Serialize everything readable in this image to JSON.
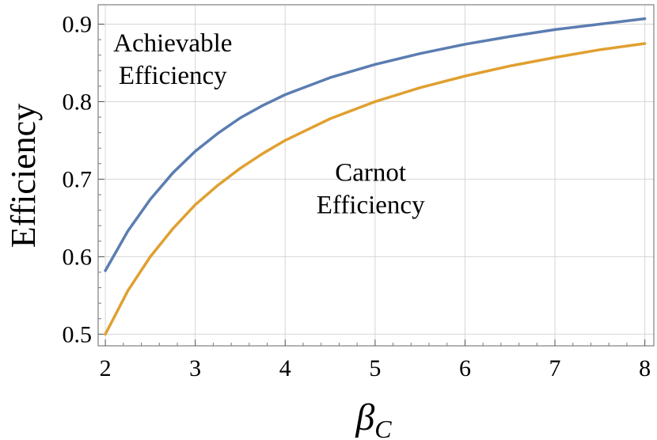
{
  "chart_data": {
    "type": "line",
    "xlabel_main": "β",
    "xlabel_sub": "C",
    "ylabel": "Efficiency",
    "xlim": [
      1.92,
      8.1
    ],
    "ylim": [
      0.485,
      0.925
    ],
    "x_ticks": [
      2,
      3,
      4,
      5,
      6,
      7,
      8
    ],
    "y_ticks": [
      0.5,
      0.6,
      0.7,
      0.8,
      0.9
    ],
    "x_tick_labels": [
      "2",
      "3",
      "4",
      "5",
      "6",
      "7",
      "8"
    ],
    "y_tick_labels": [
      "0.5",
      "0.6",
      "0.7",
      "0.8",
      "0.9"
    ],
    "grid": true,
    "series": [
      {
        "name": "Achievable Efficiency",
        "color": "#5B7DB1",
        "x": [
          2,
          2.25,
          2.5,
          2.75,
          3,
          3.25,
          3.5,
          3.75,
          4,
          4.5,
          5,
          5.5,
          6,
          6.5,
          7,
          7.5,
          8
        ],
        "values": [
          0.582,
          0.633,
          0.674,
          0.708,
          0.736,
          0.759,
          0.779,
          0.795,
          0.809,
          0.831,
          0.848,
          0.862,
          0.874,
          0.884,
          0.893,
          0.9,
          0.907
        ]
      },
      {
        "name": "Carnot Efficiency",
        "color": "#E0A030",
        "x": [
          2,
          2.25,
          2.5,
          2.75,
          3,
          3.25,
          3.5,
          3.75,
          4,
          4.5,
          5,
          5.5,
          6,
          6.5,
          7,
          7.5,
          8
        ],
        "values": [
          0.5,
          0.556,
          0.6,
          0.636,
          0.667,
          0.692,
          0.714,
          0.733,
          0.75,
          0.778,
          0.8,
          0.818,
          0.833,
          0.846,
          0.857,
          0.867,
          0.875
        ]
      }
    ],
    "annotations": [
      {
        "lines": [
          "Achievable",
          "Efficiency"
        ],
        "x": 2.75,
        "y": 0.865
      },
      {
        "lines": [
          "Carnot",
          "Efficiency"
        ],
        "x": 4.95,
        "y": 0.698
      }
    ]
  }
}
